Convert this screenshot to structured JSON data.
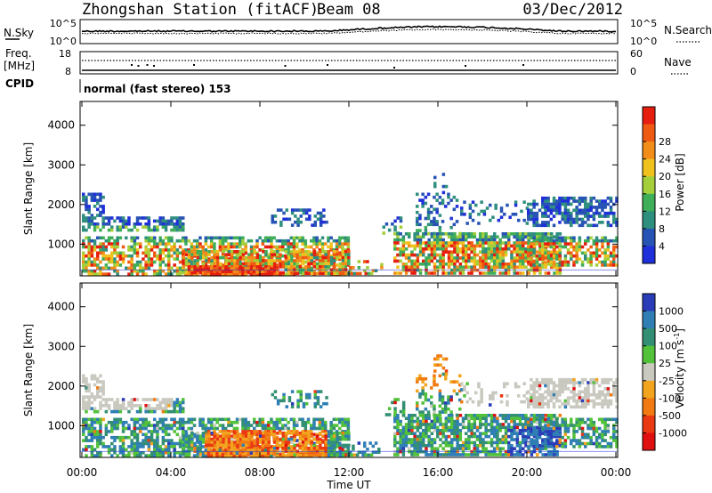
{
  "header": {
    "station": "Zhongshan Station (fitACF)",
    "beam": "Beam 08",
    "date": "03/Dec/2012"
  },
  "top_panel": {
    "left_label": "N.Sky",
    "right_label": "N.Search",
    "left_ticks": [
      "10^5",
      "10^0"
    ],
    "right_ticks": [
      "10^5",
      "10^0"
    ]
  },
  "freq_panel": {
    "left_label_1": "Freq.",
    "left_label_2": "[MHz]",
    "right_label": "Nave",
    "left_ticks": [
      "18",
      "8"
    ],
    "right_ticks": [
      "60",
      "0"
    ]
  },
  "cpid": {
    "label": "CPID",
    "value": "normal (fast stereo) 153"
  },
  "chart_data": [
    {
      "type": "heatmap",
      "ylabel": "Slant Range [km]",
      "xlabel": "",
      "x_ticks": [
        "00:00",
        "04:00",
        "08:00",
        "12:00",
        "16:00",
        "20:00",
        "00:00"
      ],
      "y_ticks": [
        1000,
        2000,
        3000,
        4000
      ],
      "ylim": [
        200,
        4600
      ],
      "colorbar": {
        "label": "Power [dB]",
        "ticks": [
          "4",
          "8",
          "12",
          "16",
          "20",
          "24",
          "28"
        ],
        "colors": [
          "#1f2fd9",
          "#2753b5",
          "#2f8f7f",
          "#3fae58",
          "#a4cf3b",
          "#f0c21e",
          "#f28d1a",
          "#ef5a12",
          "#e51e10"
        ]
      }
    },
    {
      "type": "heatmap",
      "ylabel": "Slant Range [km]",
      "xlabel": "Time UT",
      "x_ticks": [
        "00:00",
        "04:00",
        "08:00",
        "12:00",
        "16:00",
        "20:00",
        "00:00"
      ],
      "y_ticks": [
        1000,
        2000,
        3000,
        4000
      ],
      "ylim": [
        200,
        4600
      ],
      "colorbar": {
        "label": "Velocity [m s^-1]",
        "ticks": [
          "1000",
          "500",
          "100",
          "25",
          "-25",
          "-100",
          "-500",
          "-1000"
        ],
        "colors": [
          "#2a3cb8",
          "#2f7fb5",
          "#338f73",
          "#52c23a",
          "#c9c9c0",
          "#f2a41f",
          "#f27a12",
          "#ea3912",
          "#e01010"
        ]
      }
    }
  ]
}
